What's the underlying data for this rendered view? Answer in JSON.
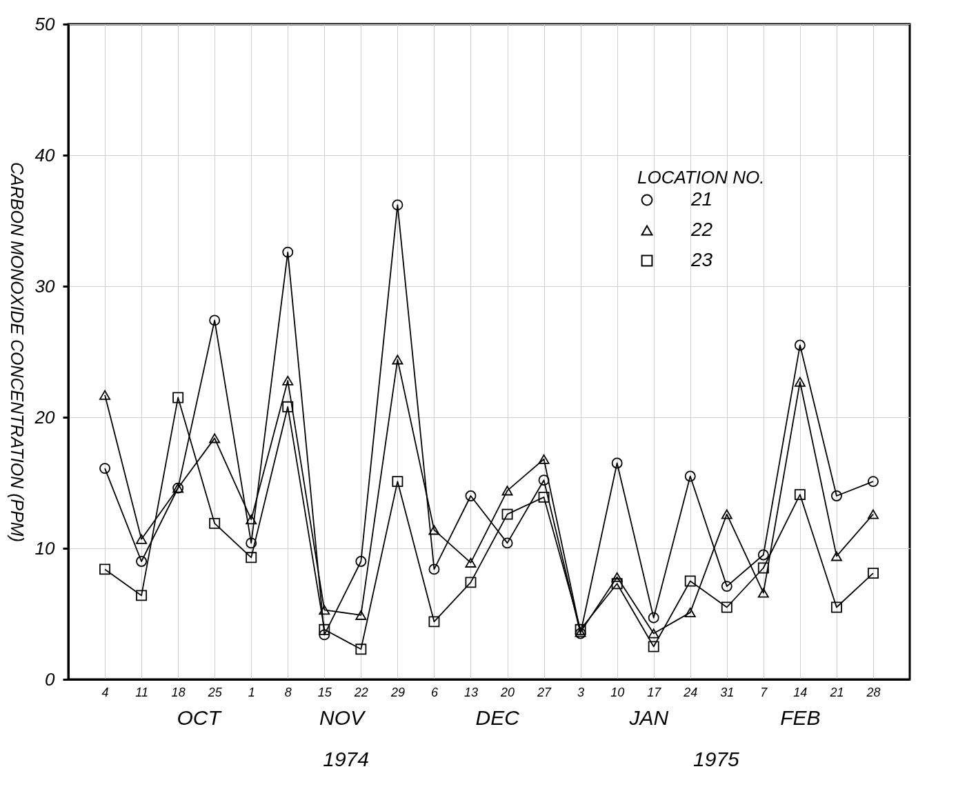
{
  "chart_data": {
    "type": "line",
    "ylabel": "CARBON MONOXIDE CONCENTRATION (PPM)",
    "legend_title": "LOCATION NO.",
    "categories": [
      "4",
      "11",
      "18",
      "25",
      "1",
      "8",
      "15",
      "22",
      "29",
      "6",
      "13",
      "20",
      "27",
      "3",
      "10",
      "17",
      "24",
      "31",
      "7",
      "14",
      "21",
      "28"
    ],
    "series": [
      {
        "name": "21",
        "color": "#000000",
        "marker": "circle",
        "values": [
          16.1,
          9.0,
          14.6,
          27.4,
          10.4,
          32.6,
          3.4,
          9.0,
          36.2,
          8.4,
          14.0,
          10.4,
          15.2,
          3.5,
          16.5,
          4.7,
          15.5,
          7.1,
          9.5,
          25.5,
          14.0,
          15.1
        ]
      },
      {
        "name": "22",
        "color": "#000000",
        "marker": "triangle",
        "values": [
          21.7,
          10.7,
          14.6,
          18.4,
          12.2,
          22.8,
          5.3,
          4.9,
          24.4,
          11.4,
          8.9,
          14.4,
          16.8,
          3.6,
          7.8,
          3.5,
          5.1,
          12.6,
          6.6,
          22.7,
          9.4,
          12.6
        ]
      },
      {
        "name": "23",
        "color": "#000000",
        "marker": "square",
        "values": [
          8.4,
          6.4,
          21.5,
          11.9,
          9.3,
          20.8,
          3.8,
          2.3,
          15.1,
          4.4,
          7.4,
          12.6,
          13.9,
          3.8,
          7.3,
          2.5,
          7.5,
          5.5,
          8.5,
          14.1,
          5.5,
          8.1
        ]
      }
    ],
    "ylim": [
      0,
      50
    ],
    "yticks": [
      0,
      10,
      20,
      30,
      40,
      50
    ],
    "grid": true,
    "legend": "top right",
    "line_style": "solid",
    "annotations": [
      "OCT",
      "NOV",
      "DEC",
      "JAN",
      "FEB",
      "1974",
      "1975"
    ]
  }
}
